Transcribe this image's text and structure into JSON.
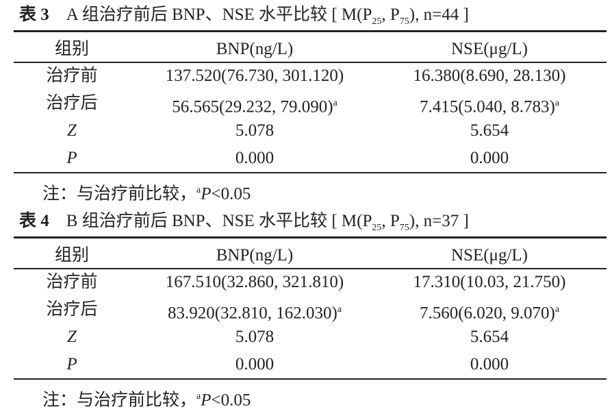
{
  "tables": [
    {
      "caption": {
        "label": "表 3",
        "text": "A 组治疗前后 BNP、NSE 水平比较",
        "stat": [
          "[ M(P",
          "25",
          ", P",
          "75",
          "), n=44 ]"
        ]
      },
      "header": [
        "组别",
        "BNP(ng/L)",
        "NSE(μg/L)"
      ],
      "rows": [
        [
          {
            "text": "治疗前"
          },
          {
            "text": "137.520(76.730, 301.120)"
          },
          {
            "text": "16.380(8.690, 28.130)"
          }
        ],
        [
          {
            "text": "治疗后"
          },
          {
            "text": "56.565(29.232, 79.090)",
            "sup": "a"
          },
          {
            "text": "7.415(5.040, 8.783)",
            "sup": "a"
          }
        ],
        [
          {
            "text": "Z"
          },
          {
            "text": "5.078"
          },
          {
            "text": "5.654"
          }
        ],
        [
          {
            "text": "P"
          },
          {
            "text": "0.000"
          },
          {
            "text": "0.000"
          }
        ]
      ],
      "note": [
        "注：与治疗前比较，",
        "a",
        "P",
        "<0.05"
      ]
    },
    {
      "caption": {
        "label": "表 4",
        "text": "B 组治疗前后 BNP、NSE 水平比较",
        "stat": [
          "[ M(P",
          "25",
          ", P",
          "75",
          "), n=37 ]"
        ]
      },
      "header": [
        "组别",
        "BNP(ng/L)",
        "NSE(μg/L)"
      ],
      "rows": [
        [
          {
            "text": "治疗前"
          },
          {
            "text": "167.510(32.860, 321.810)"
          },
          {
            "text": "17.310(10.03, 21.750)"
          }
        ],
        [
          {
            "text": "治疗后"
          },
          {
            "text": "83.920(32.810, 162.030)",
            "sup": "a"
          },
          {
            "text": "7.560(6.020, 9.070)",
            "sup": "a"
          }
        ],
        [
          {
            "text": "Z"
          },
          {
            "text": "5.078"
          },
          {
            "text": "5.654"
          }
        ],
        [
          {
            "text": "P"
          },
          {
            "text": "0.000"
          },
          {
            "text": "0.000"
          }
        ]
      ],
      "note": [
        "注：与治疗前比较，",
        "a",
        "P",
        "<0.05"
      ]
    }
  ]
}
